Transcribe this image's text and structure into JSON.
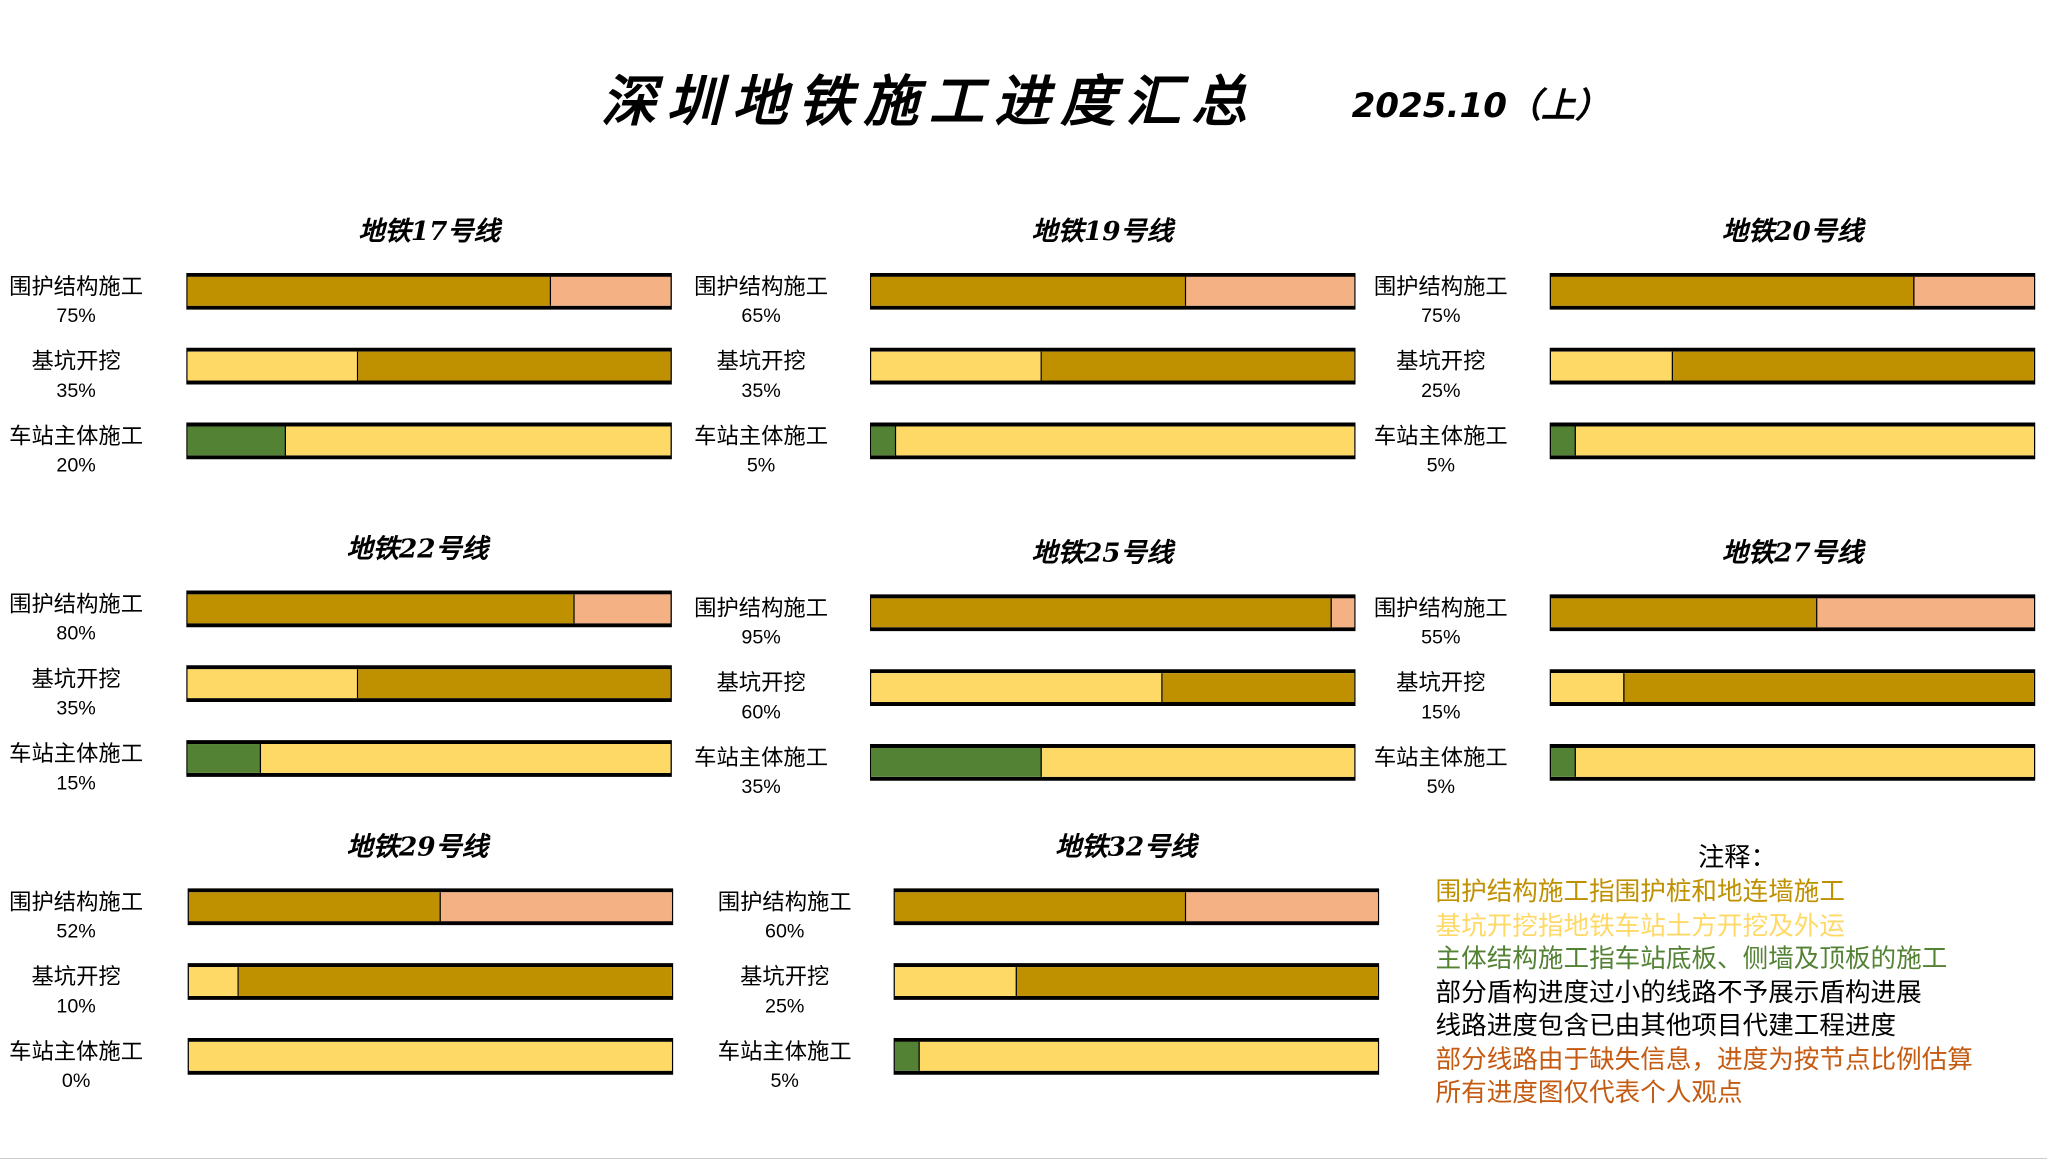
{
  "title": "深圳地铁施工进度汇总",
  "date": "2025.10（上）",
  "colors": {
    "enclosure_done": "#BF9000",
    "enclosure_left": "#F4B183",
    "pit_done": "#FFD966",
    "body_done": "#548235",
    "note_gold": "#BF9000",
    "note_yellow": "#FFD966",
    "note_green": "#548235",
    "note_black": "#000000",
    "note_orange": "#C55A11"
  },
  "chart_data": {
    "type": "bar",
    "orientation": "horizontal-stacked-progress",
    "stages": [
      "围护结构施工",
      "基坑开挖",
      "车站主体施工"
    ],
    "lines": [
      {
        "name": "地铁17号线",
        "values": [
          75,
          35,
          20
        ],
        "labels": [
          "75%",
          "35%",
          "20%"
        ]
      },
      {
        "name": "地铁19号线",
        "values": [
          65,
          35,
          5
        ],
        "labels": [
          "65%",
          "35%",
          "5%"
        ]
      },
      {
        "name": "地铁20号线",
        "values": [
          75,
          25,
          5
        ],
        "labels": [
          "75%",
          "25%",
          "5%"
        ]
      },
      {
        "name": "地铁22号线",
        "values": [
          80,
          35,
          15
        ],
        "labels": [
          "80%",
          "35%",
          "15%"
        ]
      },
      {
        "name": "地铁25号线",
        "values": [
          95,
          60,
          35
        ],
        "labels": [
          "95%",
          "60%",
          "35%"
        ]
      },
      {
        "name": "地铁27号线",
        "values": [
          55,
          15,
          5
        ],
        "labels": [
          "55%",
          "15%",
          "5%"
        ]
      },
      {
        "name": "地铁29号线",
        "values": [
          52,
          10,
          0
        ],
        "labels": [
          "52%",
          "10%",
          "0%"
        ]
      },
      {
        "name": "地铁32号线",
        "values": [
          60,
          25,
          5
        ],
        "labels": [
          "60%",
          "25%",
          "5%"
        ]
      }
    ]
  },
  "notes": {
    "title": "注释：",
    "items": [
      {
        "text": "围护结构施工指围护桩和地连墙施工",
        "color": "#BF9000"
      },
      {
        "text": "基坑开挖指地铁车站土方开挖及外运",
        "color": "#FFD966"
      },
      {
        "text": "主体结构施工指车站底板、侧墙及顶板的施工",
        "color": "#548235"
      },
      {
        "text": "部分盾构进度过小的线路不予展示盾构进展",
        "color": "#000000"
      },
      {
        "text": "线路进度包含已由其他项目代建工程进度",
        "color": "#000000"
      },
      {
        "text": "部分线路由于缺失信息，进度为按节点比例估算",
        "color": "#C55A11"
      },
      {
        "text": "所有进度图仅代表个人观点",
        "color": "#C55A11"
      }
    ]
  }
}
